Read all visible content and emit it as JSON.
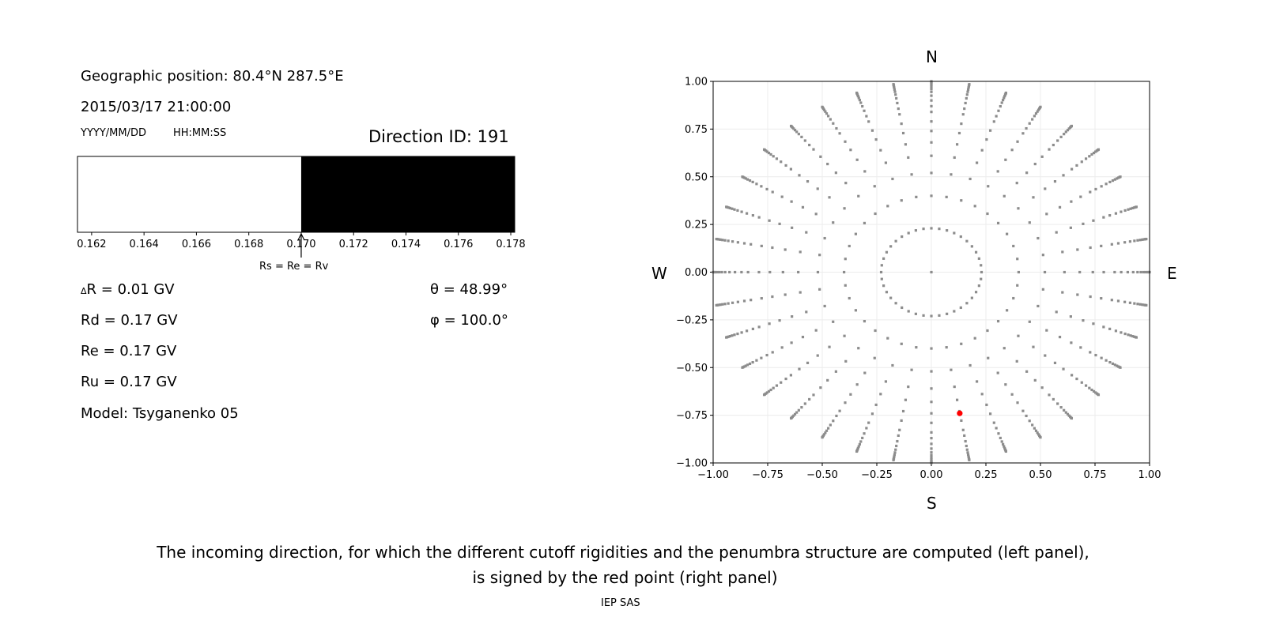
{
  "left_panel": {
    "geo_position": "Geographic position: 80.4°N 287.5°E",
    "datetime": "2015/03/17 21:00:00",
    "date_format": "YYYY/MM/DD",
    "time_format": "HH:MM:SS",
    "direction_id": "Direction ID: 191",
    "delta_r_symbol": "Δ",
    "delta_r": "R = 0.01 GV",
    "rd": "Rd = 0.17 GV",
    "re": "Re = 0.17 GV",
    "ru": "Ru = 0.17 GV",
    "model": "Model: Tsyganenko 05",
    "theta": "θ = 48.99°",
    "phi": "φ = 100.0°",
    "annotation": "Rs = Re = Rv"
  },
  "compass": {
    "north": "N",
    "south": "S",
    "west": "W",
    "east": "E"
  },
  "caption_line1": "The incoming direction, for which the different cutoff rigidities and the penumbra structure are computed (left panel),",
  "caption_line2": "is signed by the red point (right panel)",
  "footer": "IEP SAS",
  "chart_data": [
    {
      "type": "bar",
      "xlim": [
        0.16146,
        0.17815
      ],
      "xticks": [
        "0.162",
        "0.164",
        "0.166",
        "0.168",
        "0.170",
        "0.172",
        "0.174",
        "0.176",
        "0.178"
      ],
      "xtick_values": [
        0.162,
        0.164,
        0.166,
        0.168,
        0.17,
        0.172,
        0.174,
        0.176,
        0.178
      ],
      "segments": [
        {
          "from": 0.16146,
          "to": 0.17,
          "color": "#ffffff"
        },
        {
          "from": 0.17,
          "to": 0.17815,
          "color": "#000000"
        }
      ],
      "arrow_at": 0.17
    },
    {
      "type": "scatter",
      "xlim": [
        -1,
        1
      ],
      "ylim": [
        -1,
        1
      ],
      "grid": true,
      "xticks": [
        "−1.00",
        "−0.75",
        "−0.50",
        "−0.25",
        "0.00",
        "0.25",
        "0.50",
        "0.75",
        "1.00"
      ],
      "yticks": [
        "−1.00",
        "−0.75",
        "−0.50",
        "−0.25",
        "0.00",
        "0.25",
        "0.50",
        "0.75",
        "1.00"
      ],
      "tick_values": [
        -1,
        -0.75,
        -0.5,
        -0.25,
        0,
        0.25,
        0.5,
        0.75,
        1
      ],
      "point_color": "#8c8c8c",
      "highlight_color": "#ff0000",
      "center_point": [
        0,
        0
      ],
      "ring": {
        "radius": 0.23,
        "count": 40
      },
      "ray_azimuth_step_deg": 10,
      "ray_radii": [
        0.4,
        0.52,
        0.61,
        0.68,
        0.74,
        0.79,
        0.84,
        0.87,
        0.9,
        0.925,
        0.945,
        0.96,
        0.972,
        0.982,
        0.99,
        0.996,
        1.0
      ],
      "highlight": [
        0.13,
        -0.74
      ]
    }
  ]
}
